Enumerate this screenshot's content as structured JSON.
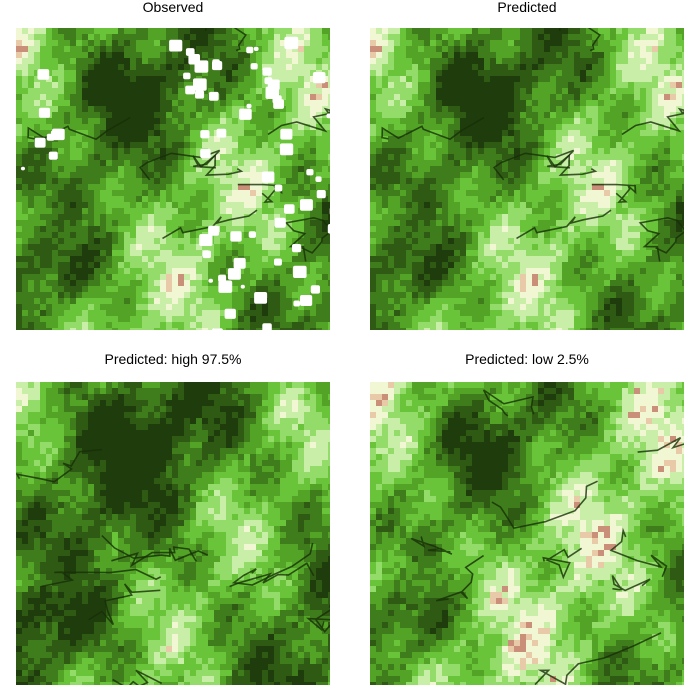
{
  "panels": [
    {
      "title": "Observed",
      "has_gaps": true,
      "variant": "mid"
    },
    {
      "title": "Predicted",
      "has_gaps": false,
      "variant": "mid"
    },
    {
      "title": "Predicted: high 97.5%",
      "has_gaps": false,
      "variant": "high"
    },
    {
      "title": "Predicted: low 2.5%",
      "has_gaps": false,
      "variant": "low"
    }
  ],
  "palette": [
    "#1f3d0c",
    "#2f5a14",
    "#3f7d1c",
    "#52a326",
    "#6ac43a",
    "#94dc6a",
    "#c8eea8",
    "#f1f7d2",
    "#e8c9a8",
    "#c98f78"
  ],
  "gap_color": "#ffffff"
}
